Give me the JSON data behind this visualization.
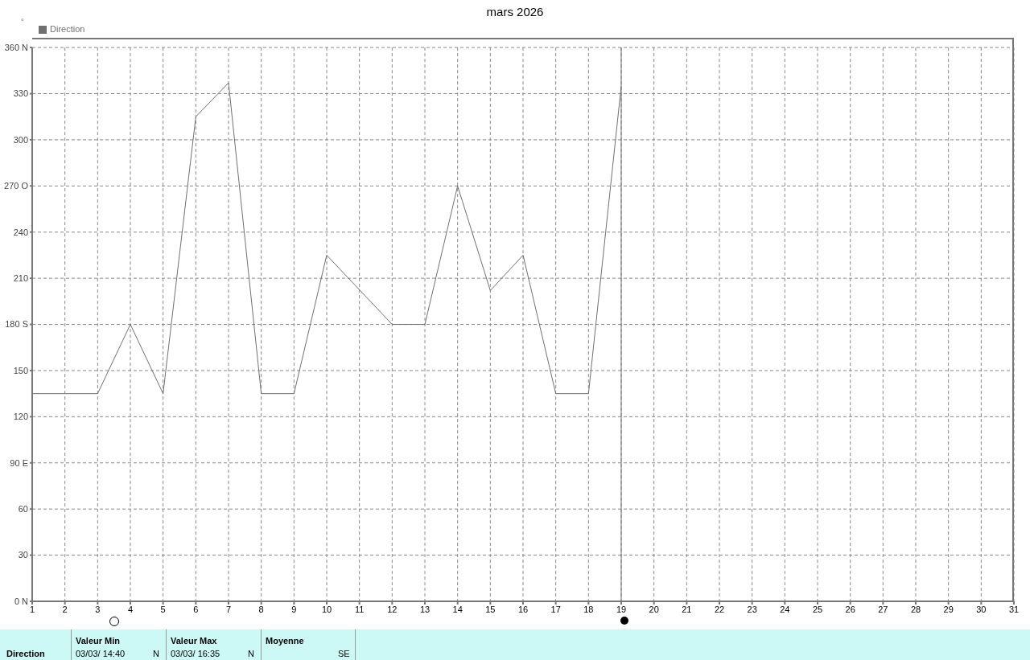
{
  "chart_data": {
    "type": "line",
    "title": "mars 2026",
    "ylabel": "°",
    "x": [
      1,
      2,
      3,
      4,
      5,
      6,
      7,
      8,
      9,
      10,
      11,
      12,
      13,
      14,
      15,
      16,
      17,
      18,
      19
    ],
    "series": [
      {
        "name": "Direction",
        "color": "#707070",
        "values": [
          135,
          135,
          135,
          180,
          135,
          315,
          337,
          135,
          135,
          225,
          202.5,
          180,
          180,
          270,
          202,
          225,
          135,
          135,
          335
        ]
      }
    ],
    "xlim": [
      1,
      31
    ],
    "xticks": [
      1,
      2,
      3,
      4,
      5,
      6,
      7,
      8,
      9,
      10,
      11,
      12,
      13,
      14,
      15,
      16,
      17,
      18,
      19,
      20,
      21,
      22,
      23,
      24,
      25,
      26,
      27,
      28,
      29,
      30,
      31
    ],
    "ylim": [
      0,
      360
    ],
    "yticks": [
      {
        "value": 0,
        "label": "0  N"
      },
      30,
      60,
      {
        "value": 90,
        "label": "90  E"
      },
      120,
      150,
      {
        "value": 180,
        "label": "180 S"
      },
      210,
      240,
      {
        "value": 270,
        "label": "270 O"
      },
      300,
      330,
      {
        "value": 360,
        "label": "360 N"
      }
    ],
    "ref_lines": [
      {
        "axis": "x",
        "value": 19,
        "color": "#707070"
      }
    ],
    "grid": true,
    "legend": "top left",
    "marker": "none",
    "line_style": "solid",
    "annotations": [
      "Direction",
      "Valeur Min",
      "03/03/ 14:40",
      "N",
      "Valeur Max",
      "03/03/ 16:35",
      "N",
      "Moyenne",
      "SE"
    ]
  }
}
